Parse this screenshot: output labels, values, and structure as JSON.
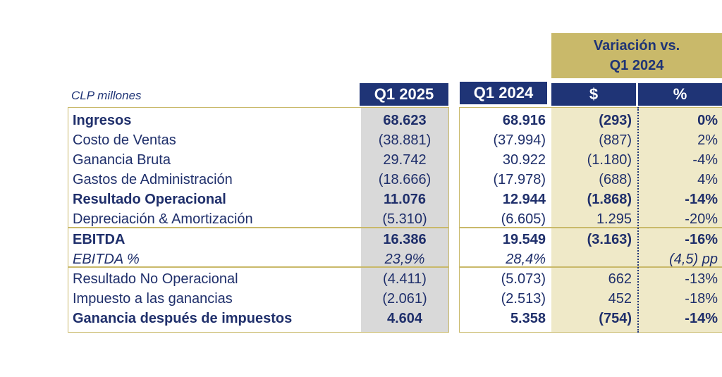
{
  "header": {
    "unit_label": "CLP millones",
    "col_q1_2025": "Q1 2025",
    "col_q1_2024": "Q1 2024",
    "variation_line1": "Variación vs.",
    "variation_line2": "Q1 2024",
    "col_dollar": "$",
    "col_percent": "%"
  },
  "rows": [
    {
      "label": "Ingresos",
      "q1_2025": "68.623",
      "q1_2024": "68.916",
      "var_abs": "(293)",
      "var_pct": "0%",
      "style": "bold"
    },
    {
      "label": "Costo de Ventas",
      "q1_2025": "(38.881)",
      "q1_2024": "(37.994)",
      "var_abs": "(887)",
      "var_pct": "2%",
      "style": "normal"
    },
    {
      "label": "Ganancia Bruta",
      "q1_2025": "29.742",
      "q1_2024": "30.922",
      "var_abs": "(1.180)",
      "var_pct": "-4%",
      "style": "normal"
    },
    {
      "label": "Gastos de Administración",
      "q1_2025": "(18.666)",
      "q1_2024": "(17.978)",
      "var_abs": "(688)",
      "var_pct": "4%",
      "style": "normal"
    },
    {
      "label": "Resultado Operacional",
      "q1_2025": "11.076",
      "q1_2024": "12.944",
      "var_abs": "(1.868)",
      "var_pct": "-14%",
      "style": "bold"
    },
    {
      "label": "Depreciación & Amortización",
      "q1_2025": "(5.310)",
      "q1_2024": "(6.605)",
      "var_abs": "1.295",
      "var_pct": "-20%",
      "style": "normal"
    },
    {
      "label": "EBITDA",
      "q1_2025": "16.386",
      "q1_2024": "19.549",
      "var_abs": "(3.163)",
      "var_pct": "-16%",
      "style": "bold"
    },
    {
      "label": "EBITDA %",
      "q1_2025": "23,9%",
      "q1_2024": "28,4%",
      "var_abs": "",
      "var_pct": "(4,5) pp",
      "style": "italic"
    },
    {
      "label": "Resultado No Operacional",
      "q1_2025": "(4.411)",
      "q1_2024": "(5.073)",
      "var_abs": "662",
      "var_pct": "-13%",
      "style": "normal"
    },
    {
      "label": "Impuesto a las ganancias",
      "q1_2025": "(2.061)",
      "q1_2024": "(2.513)",
      "var_abs": "452",
      "var_pct": "-18%",
      "style": "normal"
    },
    {
      "label": "Ganancia después de impuestos",
      "q1_2025": "4.604",
      "q1_2024": "5.358",
      "var_abs": "(754)",
      "var_pct": "-14%",
      "style": "bold"
    }
  ],
  "colors": {
    "navy": "#1f3476",
    "gold_header": "#c9b96a",
    "gold_fill": "#efe9c8",
    "gray_fill": "#d9d9d9"
  }
}
